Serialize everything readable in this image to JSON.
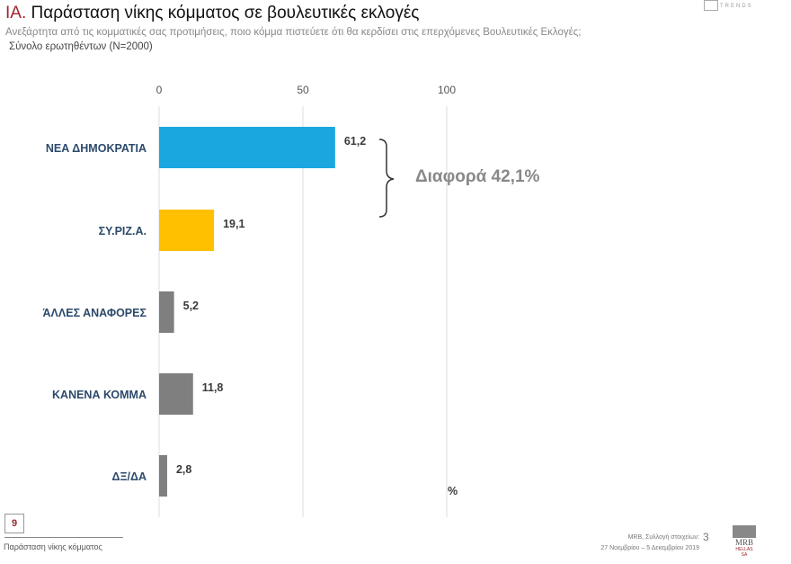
{
  "header": {
    "title_prefix": "ΙΑ.",
    "title": "Παράσταση νίκης κόμματος σε βουλευτικές εκλογές",
    "subtitle": "Ανεξάρτητα από τις κομματικές σας προτιμήσεις, ποιο κόμμα πιστεύετε ότι θα κερδίσει στις επερχόμενες Βουλευτικές Εκλογές;",
    "base": "Σύνολο ερωτηθέντων (N=2000)",
    "logo_text": "TRENDS"
  },
  "chart_data": {
    "type": "bar",
    "orientation": "horizontal",
    "categories": [
      "ΝΕΑ ΔΗΜΟΚΡΑΤΙΑ",
      "ΣΥ.ΡΙΖ.Α.",
      "ΆΛΛΕΣ ΑΝΑΦΟΡΕΣ",
      "ΚΑΝΕΝΑ ΚΟΜΜΑ",
      "ΔΞ/ΔΑ"
    ],
    "values": [
      61.2,
      19.1,
      5.2,
      11.8,
      2.8
    ],
    "value_labels": [
      "61,2",
      "19,1",
      "5,2",
      "11,8",
      "2,8"
    ],
    "colors": [
      "#1aa7e0",
      "#ffc000",
      "#7f7f7f",
      "#7f7f7f",
      "#7f7f7f"
    ],
    "xlim": [
      0,
      100
    ],
    "x_ticks": [
      "0",
      "50",
      "100"
    ],
    "unit_label": "%",
    "grid": true,
    "annotation": "Διαφορά 42,1%"
  },
  "footer": {
    "page_box": "9",
    "section": "Παράσταση νίκης κόμματος",
    "source": "MRB, Συλλογή στοιχείων:",
    "source_num": "3",
    "dates": "27 Νοεμβρίου – 5 Δεκεμβρίου 2019",
    "logo": "MRB",
    "logo_sub": "HELLAS SA"
  }
}
